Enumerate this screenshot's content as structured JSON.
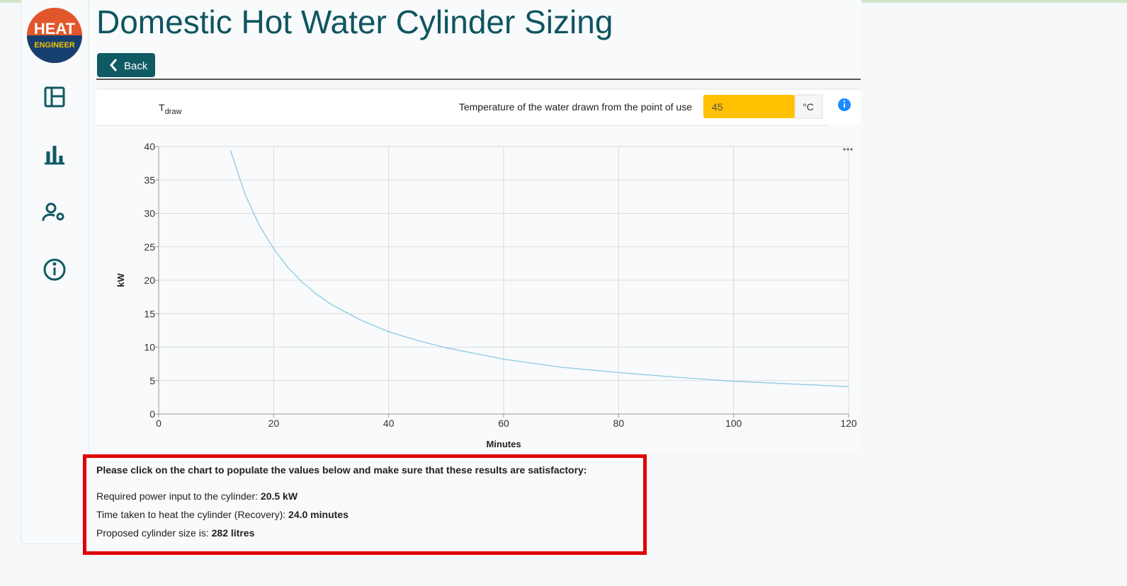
{
  "logo": {
    "top": "HEAT",
    "bottom": "ENGINEER"
  },
  "header": {
    "title": "Domestic Hot Water Cylinder Sizing",
    "back": "Back"
  },
  "input_row": {
    "symbol": "T",
    "subscript": "draw",
    "description": "Temperature of the water drawn from the point of use",
    "value": "45",
    "unit": "°C"
  },
  "chart_data": {
    "type": "line",
    "x_label": "Minutes",
    "y_label": "kW",
    "x": [
      12.5,
      15,
      17.5,
      20,
      22.5,
      25,
      27.5,
      30,
      35,
      40,
      45,
      50,
      60,
      70,
      80,
      90,
      100,
      110,
      120
    ],
    "series": [
      {
        "color": "#8cc8e4",
        "values": [
          39.4,
          32.9,
          28.2,
          24.7,
          21.9,
          19.7,
          17.9,
          16.4,
          14.1,
          12.3,
          11.0,
          9.9,
          8.2,
          7.0,
          6.2,
          5.5,
          4.9,
          4.5,
          4.1
        ]
      }
    ],
    "xlim": [
      0,
      120
    ],
    "xticks": [
      0,
      20,
      40,
      60,
      80,
      100,
      120
    ],
    "ylim": [
      0,
      40
    ],
    "yticks": [
      0,
      5,
      10,
      15,
      20,
      25,
      30,
      35,
      40
    ],
    "grid": true
  },
  "results": {
    "prompt": "Please click on the chart to populate the values below and make sure that these results are satisfactory:",
    "lines": [
      {
        "label": "Required power input to the cylinder: ",
        "value": "20.5 kW"
      },
      {
        "label": "Time taken to heat the cylinder (Recovery): ",
        "value": "24.0 minutes"
      },
      {
        "label": "Proposed cylinder size is: ",
        "value": "282 litres"
      }
    ]
  }
}
